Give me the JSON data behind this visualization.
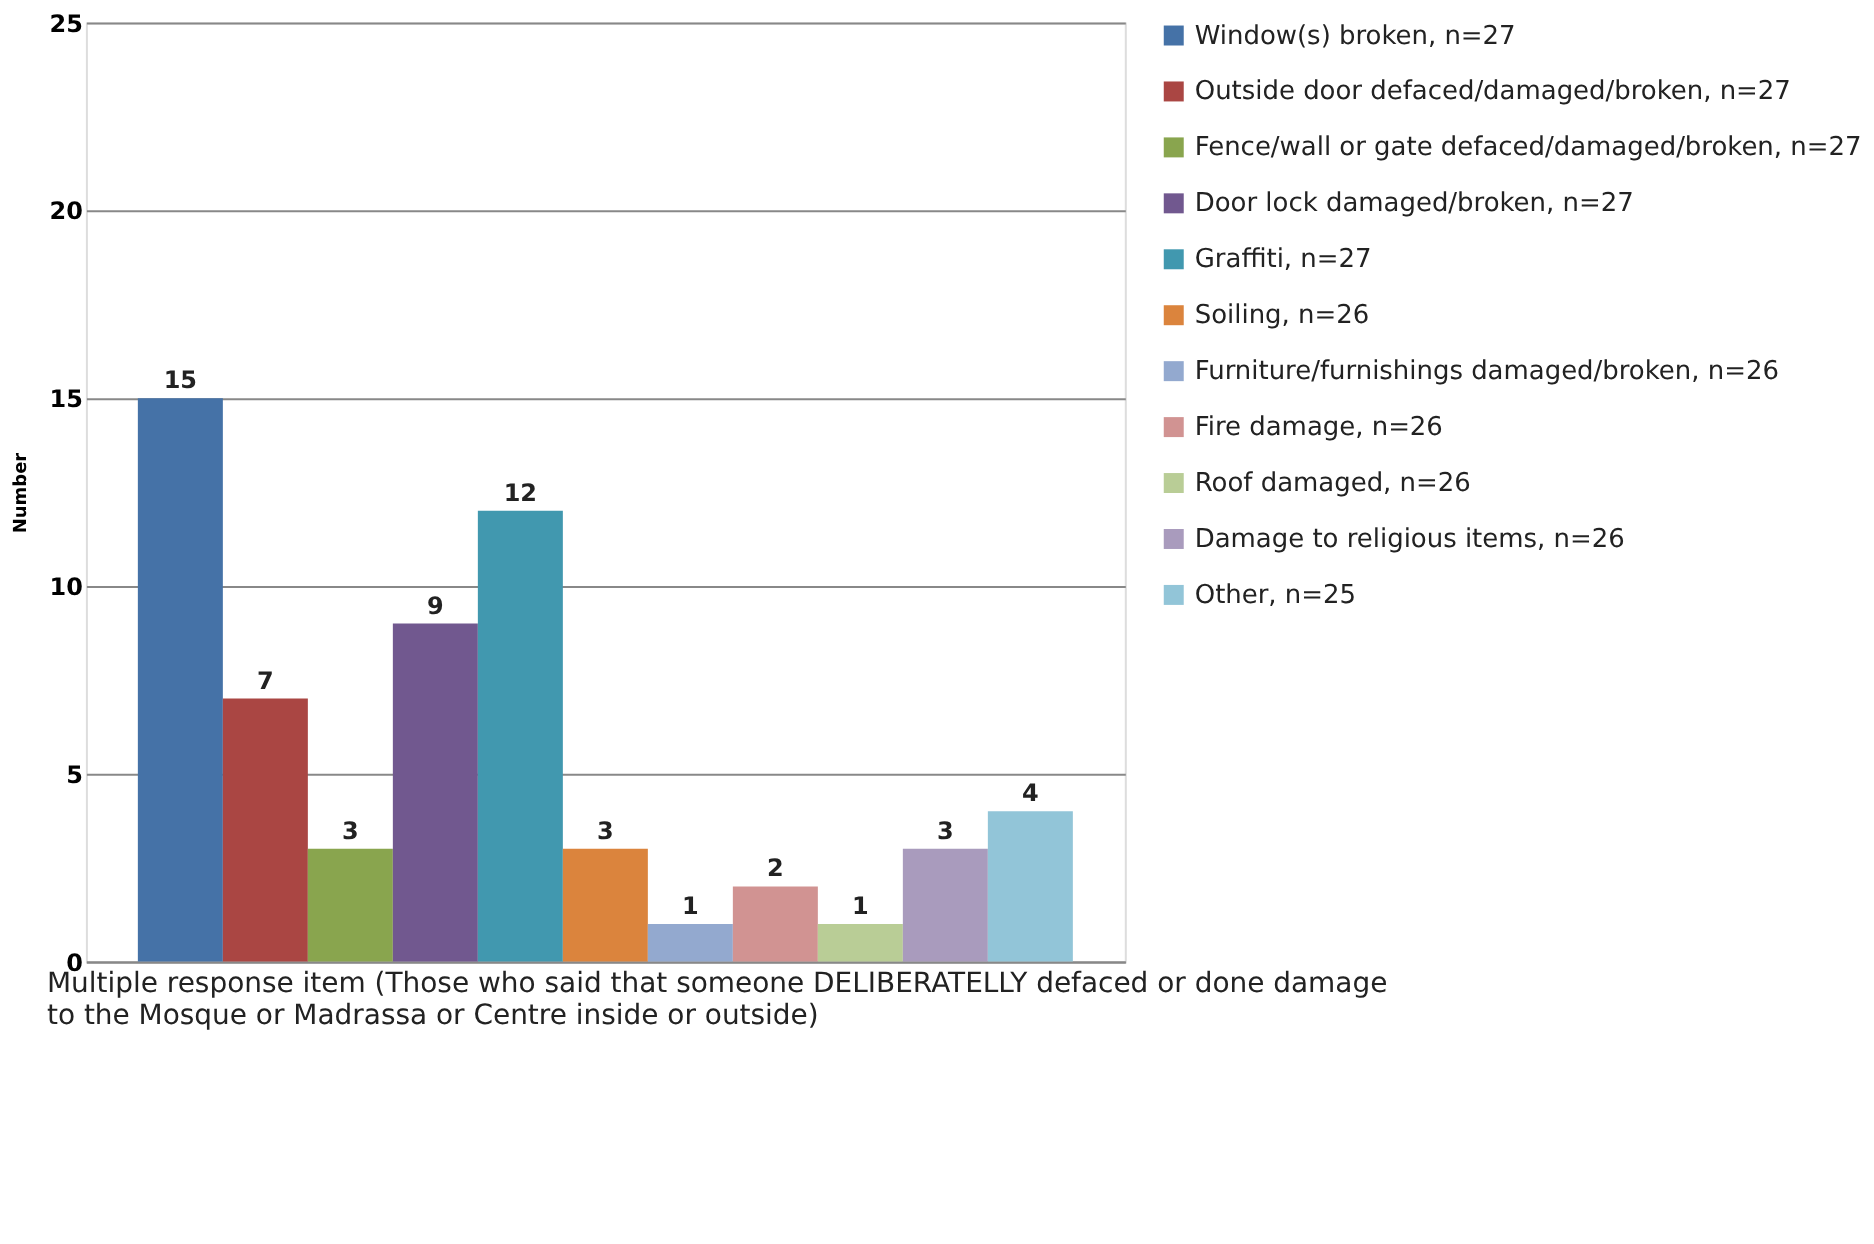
{
  "chart_data": {
    "type": "bar",
    "xlabel": "Multiple response item (Those who said that someone DELIBERATELLY defaced or done damage to the Mosque or Madrassa or Centre inside or outside)",
    "ylabel": "Number",
    "categories": [
      null
    ],
    "series": [
      {
        "name": "Window(s) broken, n=27",
        "color": "#4572a7",
        "values": [
          15
        ]
      },
      {
        "name": "Outside door defaced/damaged/broken, n=27",
        "color": "#aa4643",
        "values": [
          7
        ]
      },
      {
        "name": "Fence/wall or gate defaced/damaged/broken, n=27",
        "color": "#89a54e",
        "values": [
          3
        ]
      },
      {
        "name": "Door lock damaged/broken, n=27",
        "color": "#71588f",
        "values": [
          9
        ]
      },
      {
        "name": "Graffiti, n=27",
        "color": "#4198af",
        "values": [
          12
        ]
      },
      {
        "name": "Soiling, n=26",
        "color": "#db843d",
        "values": [
          3
        ]
      },
      {
        "name": "Furniture/furnishings damaged/broken, n=26",
        "color": "#93a9cf",
        "values": [
          1
        ]
      },
      {
        "name": "Fire damage, n=26",
        "color": "#d19392",
        "values": [
          2
        ]
      },
      {
        "name": "Roof damaged, n=26",
        "color": "#b9cd96",
        "values": [
          1
        ]
      },
      {
        "name": "Damage to religious items, n=26",
        "color": "#a99bbd",
        "values": [
          3
        ]
      },
      {
        "name": "Other, n=25",
        "color": "#92c5d8",
        "values": [
          4
        ]
      }
    ],
    "ylim": [
      0,
      25
    ],
    "yticks": [
      0,
      5,
      10,
      15,
      20,
      25
    ],
    "grid": "y",
    "legend": "right",
    "tick_labels": "y",
    "data_labels": true
  }
}
